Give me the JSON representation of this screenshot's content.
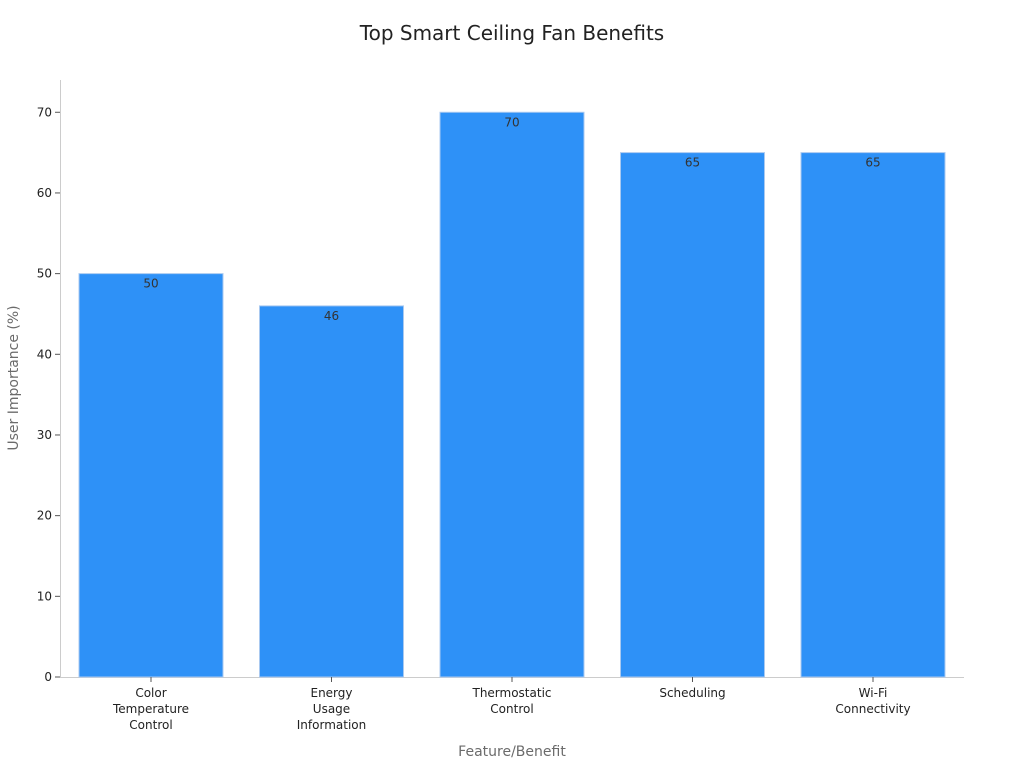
{
  "chart_data": {
    "type": "bar",
    "title": "Top Smart Ceiling Fan Benefits",
    "xlabel": "Feature/Benefit",
    "ylabel": "User Importance (%)",
    "categories": [
      [
        "Color",
        "Temperature",
        "Control"
      ],
      [
        "Energy",
        "Usage",
        "Information"
      ],
      [
        "Thermostatic",
        "Control"
      ],
      [
        "Scheduling"
      ],
      [
        "Wi-Fi",
        "Connectivity"
      ]
    ],
    "values": [
      50,
      46,
      70,
      65,
      65
    ],
    "data_labels": [
      "50",
      "46",
      "70",
      "65",
      "65"
    ],
    "ylim": [
      0,
      74
    ],
    "yticks": [
      0,
      10,
      20,
      30,
      40,
      50,
      60,
      70
    ],
    "grid": false,
    "legend": "none",
    "bar_color": "#2e91f7",
    "bar_edge_color": "#a9c9f0"
  }
}
